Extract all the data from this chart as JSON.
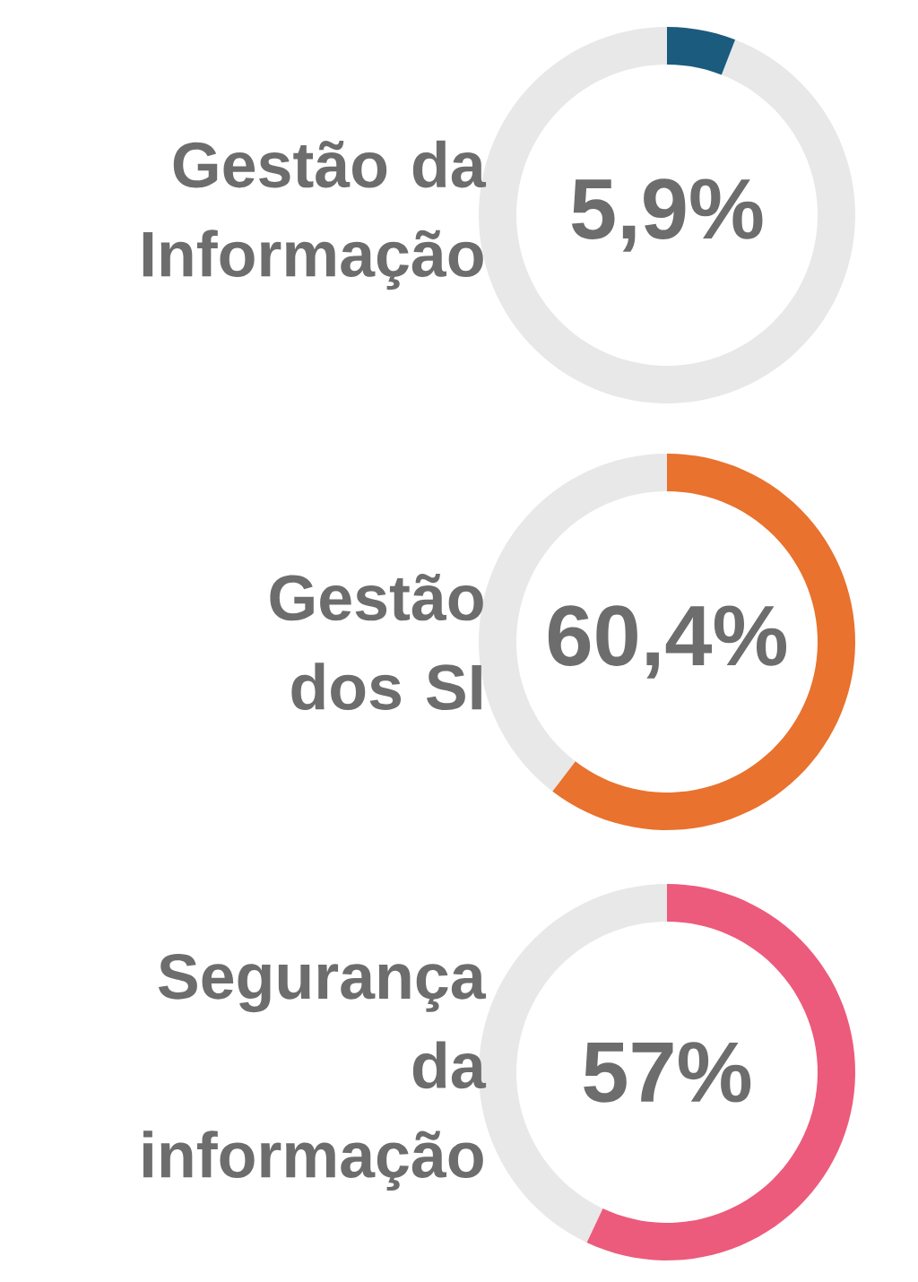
{
  "chart_data": [
    {
      "type": "donut",
      "title": "Gestão da Informação",
      "categories": [
        null,
        null
      ],
      "values": [
        5.9,
        94.1
      ],
      "colors": [
        "#1b5b7e",
        "#e8e8e8"
      ],
      "annotations": [
        "5,9%"
      ]
    },
    {
      "type": "donut",
      "title": "Gestão dos SI",
      "categories": [
        null,
        null
      ],
      "values": [
        60.4,
        39.6
      ],
      "colors": [
        "#e8722e",
        "#e8e8e8"
      ],
      "annotations": [
        "60,4%"
      ]
    },
    {
      "type": "donut",
      "title": "Segurança da informação",
      "categories": [
        null,
        null
      ],
      "values": [
        57,
        43
      ],
      "colors": [
        "#ec5b7b",
        "#e8e8e8"
      ],
      "annotations": [
        "57%"
      ]
    }
  ]
}
